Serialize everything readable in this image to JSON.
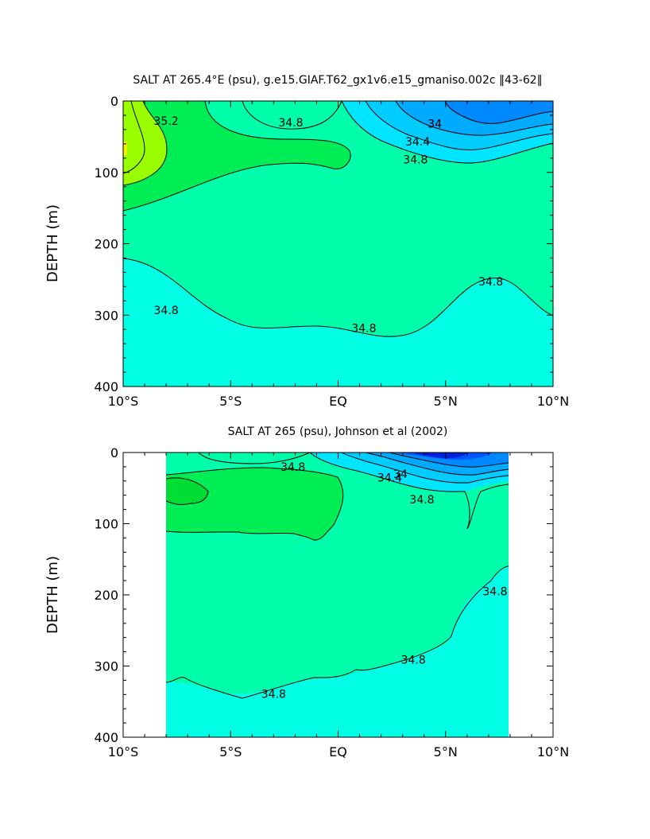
{
  "chart_data": [
    {
      "type": "contour",
      "title": "SALT AT 265.4°E (psu), g.e15.GIAF.T62_gx1v6.e15_gmaniso.002c ‖43-62‖",
      "xlabel": "",
      "ylabel": "DEPTH (m)",
      "xlim": [
        -10,
        10
      ],
      "ylim": [
        400,
        0
      ],
      "x_ticks": [
        -10,
        -5,
        0,
        5,
        10
      ],
      "x_tick_labels": [
        "10°S",
        "5°S",
        "EQ",
        "5°N",
        "10°N"
      ],
      "y_ticks": [
        0,
        100,
        200,
        300,
        400
      ],
      "y_tick_labels": [
        "0",
        "100",
        "200",
        "300",
        "400"
      ],
      "fill_colors": {
        "saltiest": "#f2f200",
        "s35_4": "#99ff00",
        "s35_0": "#00ee55",
        "s34_8": "#00ffaa",
        "low_34_8": "#00ffe5",
        "s34_6": "#00e5ff",
        "s34_4": "#00ccff",
        "s34_2": "#00aaff",
        "s34_0": "#0088ff",
        "s33_8": "#0055ff"
      },
      "contour_labels": [
        {
          "text": "35.2",
          "x": -8.0,
          "y": 28
        },
        {
          "text": "34.8",
          "x": -2.2,
          "y": 30
        },
        {
          "text": "34",
          "x": 4.5,
          "y": 32
        },
        {
          "text": "34.4",
          "x": 3.7,
          "y": 57
        },
        {
          "text": "34.8",
          "x": 3.6,
          "y": 82
        },
        {
          "text": "34.8",
          "x": -8.0,
          "y": 293
        },
        {
          "text": "34.8",
          "x": 1.2,
          "y": 318
        },
        {
          "text": "34.8",
          "x": 7.1,
          "y": 253
        }
      ]
    },
    {
      "type": "contour",
      "title": "SALT AT 265 (psu), Johnson et al (2002)",
      "xlabel": "",
      "ylabel": "DEPTH (m)",
      "xlim": [
        -10,
        10
      ],
      "ylim": [
        400,
        0
      ],
      "data_extent_x": [
        -8,
        8
      ],
      "x_ticks": [
        -10,
        -5,
        0,
        5,
        10
      ],
      "x_tick_labels": [
        "10°S",
        "5°S",
        "EQ",
        "5°N",
        "10°N"
      ],
      "y_ticks": [
        0,
        100,
        200,
        300,
        400
      ],
      "y_tick_labels": [
        "0",
        "100",
        "200",
        "300",
        "400"
      ],
      "contour_labels": [
        {
          "text": "34.8",
          "x": -2.1,
          "y": 20
        },
        {
          "text": "34",
          "x": 2.9,
          "y": 30
        },
        {
          "text": "34.4",
          "x": 2.4,
          "y": 35
        },
        {
          "text": "34.8",
          "x": 3.9,
          "y": 66
        },
        {
          "text": "34.8",
          "x": -3.0,
          "y": 339
        },
        {
          "text": "34.8",
          "x": 3.5,
          "y": 291
        },
        {
          "text": "34.8",
          "x": 7.3,
          "y": 195
        }
      ]
    }
  ]
}
